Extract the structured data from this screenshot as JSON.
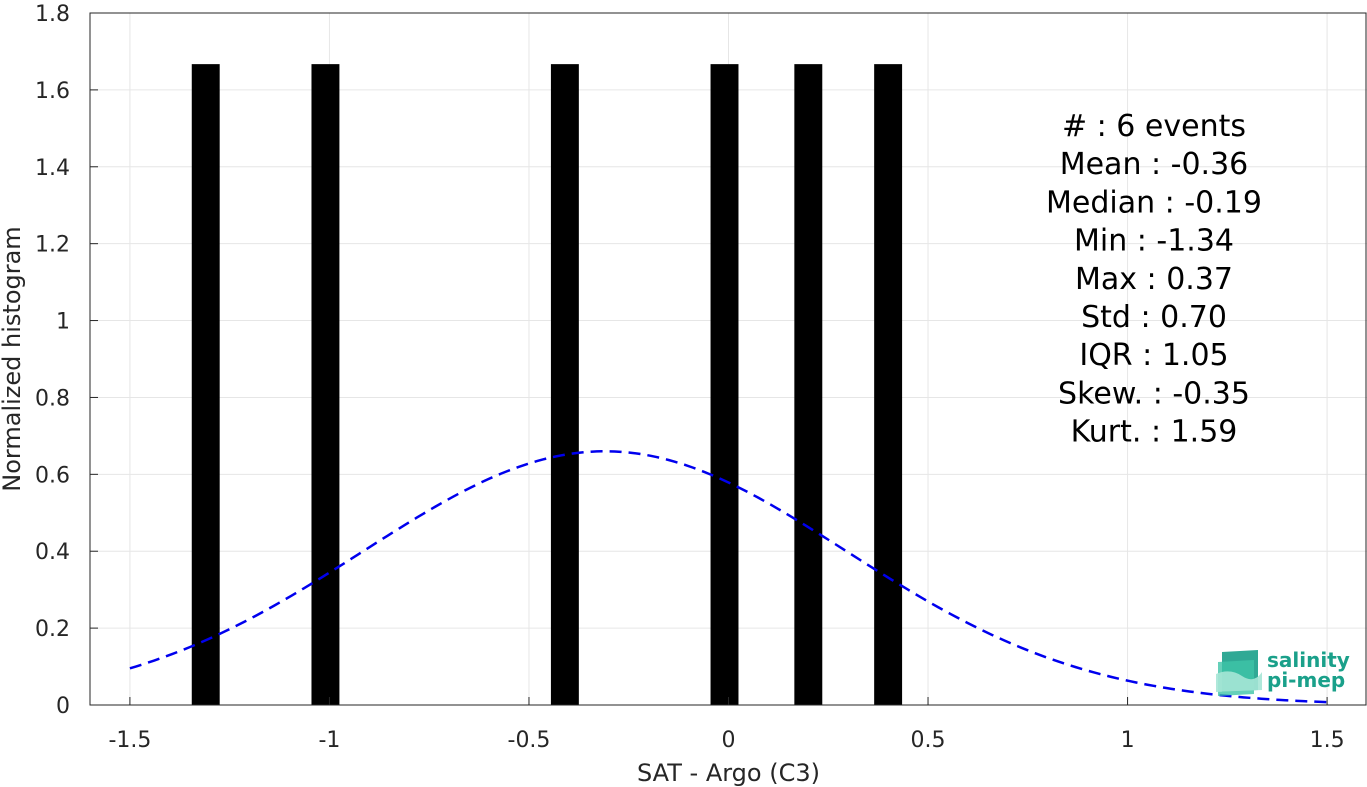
{
  "chart_data": {
    "type": "bar",
    "xlabel": "SAT - Argo (C3)",
    "ylabel": "Normalized histogram",
    "xlim": [
      -1.6,
      1.6
    ],
    "ylim": [
      0,
      1.8
    ],
    "xticks": [
      -1.5,
      -1,
      -0.5,
      0,
      0.5,
      1,
      1.5
    ],
    "xtick_labels": [
      "-1.5",
      "-1",
      "-0.5",
      "0",
      "0.5",
      "1",
      "1.5"
    ],
    "yticks": [
      0,
      0.2,
      0.4,
      0.6,
      0.8,
      1,
      1.2,
      1.4,
      1.6,
      1.8
    ],
    "ytick_labels": [
      "0",
      "0.2",
      "0.4",
      "0.6",
      "0.8",
      "1",
      "1.2",
      "1.4",
      "1.6",
      "1.8"
    ],
    "grid": true,
    "bar_width": 0.07,
    "bars": [
      {
        "x": -1.31,
        "value": 1.667
      },
      {
        "x": -1.01,
        "value": 1.667
      },
      {
        "x": -0.41,
        "value": 1.667
      },
      {
        "x": -0.01,
        "value": 1.667
      },
      {
        "x": 0.2,
        "value": 1.667
      },
      {
        "x": 0.4,
        "value": 1.667
      }
    ],
    "bar_color": "#000000",
    "fit_curve": {
      "style": "dashed",
      "color": "#0000ee",
      "x_range": [
        -1.5,
        1.5
      ],
      "mean": -0.31,
      "std": 0.605,
      "peak": 0.66
    },
    "stats": [
      "#  : 6 events",
      "Mean : -0.36",
      "Median : -0.19",
      "Min : -1.34",
      "Max : 0.37",
      "Std : 0.70",
      "IQR : 1.05",
      "Skew. : -0.35",
      "Kurt. : 1.59"
    ]
  },
  "logo": {
    "line1": "salinity",
    "line2": "pi-mep",
    "color": "#1aa08a"
  }
}
